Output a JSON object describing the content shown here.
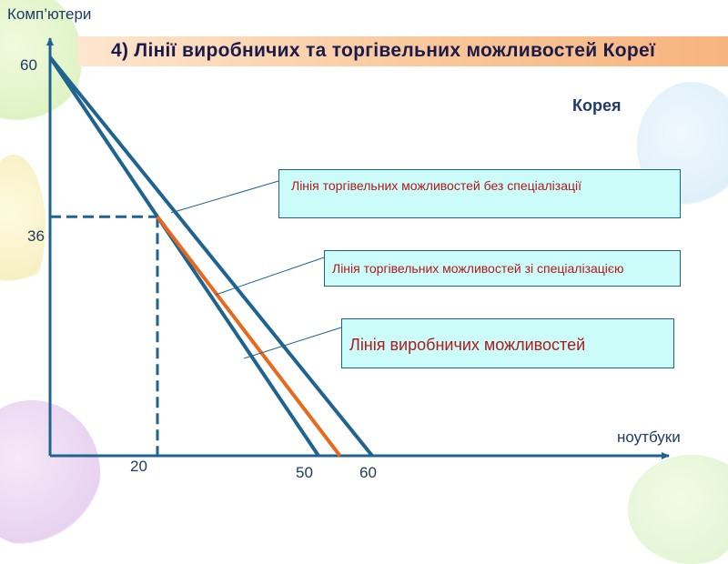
{
  "title": "4) Лінії виробничих та торгівельних можливостей Кореї",
  "country_label": "Корея",
  "colors": {
    "axis": "#1f6390",
    "ppf": "#1f6390",
    "trade_line": "#e8691c",
    "title_bg": "#f9c79a",
    "label_bg": "#ccfcfa",
    "label_text": "#b11a1a"
  },
  "labels": {
    "no_spec": "Лінія торгівельних можливостей без спеціалізації",
    "with_spec": "Лінія торгівельних можливостей зі спеціалізацією",
    "ppf": "Лінія  виробничих  можливостей"
  },
  "chart_data": {
    "type": "line",
    "xlabel": "ноутбуки",
    "ylabel": "Комп’ютери",
    "x_ticks": [
      "20",
      "50",
      "60"
    ],
    "y_ticks": [
      "60",
      "36"
    ],
    "series": [
      {
        "name": "Лінія  виробничих  можливостей",
        "points": [
          [
            0,
            60
          ],
          [
            50,
            0
          ]
        ]
      },
      {
        "name": "Лінія торгівельних можливостей без спеціалізації",
        "points": [
          [
            0,
            60
          ],
          [
            60,
            0
          ]
        ]
      },
      {
        "name": "Лінія торгівельних можливостей зі спеціалізацією",
        "points": [
          [
            20,
            36
          ],
          [
            54,
            0
          ]
        ]
      }
    ],
    "reference_point": {
      "x": 20,
      "y": 36,
      "dashed": true
    },
    "xlim": [
      0,
      67
    ],
    "ylim": [
      0,
      68
    ]
  }
}
